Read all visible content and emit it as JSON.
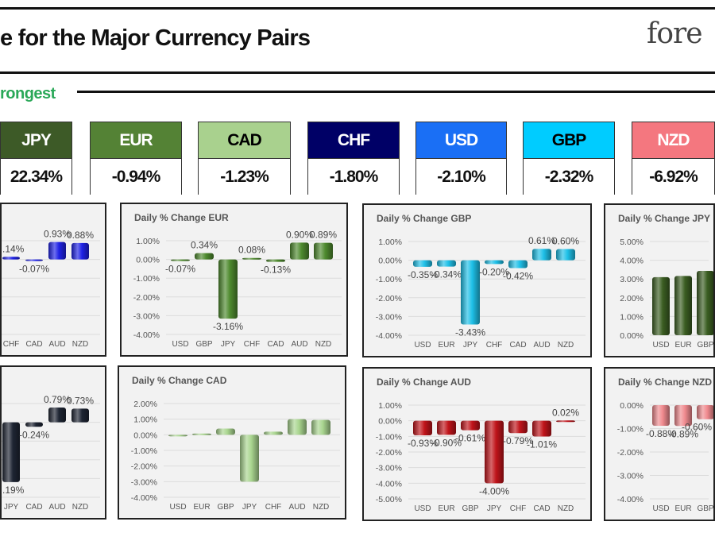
{
  "header": {
    "title": "e for the Major Currency Pairs",
    "logo": "fore",
    "section_label": "rongest"
  },
  "strength": [
    {
      "currency": "JPY",
      "value": "22.34%",
      "bg": "#3d5a27",
      "fg": "#ffffff"
    },
    {
      "currency": "EUR",
      "value": "-0.94%",
      "bg": "#548235",
      "fg": "#ffffff"
    },
    {
      "currency": "CAD",
      "value": "-1.23%",
      "bg": "#a9d18e",
      "fg": "#000000"
    },
    {
      "currency": "CHF",
      "value": "-1.80%",
      "bg": "#000066",
      "fg": "#ffffff"
    },
    {
      "currency": "USD",
      "value": "-2.10%",
      "bg": "#1a6ff5",
      "fg": "#ffffff"
    },
    {
      "currency": "GBP",
      "value": "-2.32%",
      "bg": "#00ccff",
      "fg": "#000000"
    },
    {
      "currency": "NZD",
      "value": "-6.92%",
      "bg": "#f4777f",
      "fg": "#ffffff"
    }
  ],
  "chart_data": [
    {
      "type": "bar",
      "title": "",
      "color": "#1f22e6",
      "categories": [
        "CHF",
        "CAD",
        "AUD",
        "NZD"
      ],
      "values": [
        0.14,
        -0.07,
        0.93,
        0.88
      ],
      "labels": [
        ".14%",
        "-0.07%",
        "0.93%",
        "0.88%"
      ],
      "ylim": [
        -4,
        1
      ],
      "ticks": [],
      "tick_labels": []
    },
    {
      "type": "bar",
      "title": "Daily % Change EUR",
      "color": "#4e8a2e",
      "categories": [
        "USD",
        "GBP",
        "JPY",
        "CHF",
        "CAD",
        "AUD",
        "NZD"
      ],
      "values": [
        -0.07,
        0.34,
        -3.16,
        0.08,
        -0.13,
        0.9,
        0.89
      ],
      "labels": [
        "-0.07%",
        "0.34%",
        "-3.16%",
        "0.08%",
        "-0.13%",
        "0.90%",
        "0.89%"
      ],
      "ylim": [
        -4,
        1
      ],
      "ticks": [
        1,
        0,
        -1,
        -2,
        -3,
        -4
      ],
      "tick_labels": [
        "1.00%",
        "0.00%",
        "-1.00%",
        "-2.00%",
        "-3.00%",
        "-4.00%"
      ]
    },
    {
      "type": "bar",
      "title": "Daily % Change GBP",
      "color": "#1ec0e8",
      "categories": [
        "USD",
        "EUR",
        "JPY",
        "CHF",
        "CAD",
        "AUD",
        "NZD"
      ],
      "values": [
        -0.35,
        -0.34,
        -3.43,
        -0.2,
        -0.42,
        0.61,
        0.6
      ],
      "labels": [
        "-0.35%",
        "-0.34%",
        "-3.43%",
        "-0.20%",
        "-0.42%",
        "0.61%",
        "0.60%"
      ],
      "ylim": [
        -4,
        1
      ],
      "ticks": [
        1,
        0,
        -1,
        -2,
        -3,
        -4
      ],
      "tick_labels": [
        "1.00%",
        "0.00%",
        "-1.00%",
        "-2.00%",
        "-3.00%",
        "-4.00%"
      ]
    },
    {
      "type": "bar",
      "title": "Daily % Change JPY",
      "color": "#3b5e22",
      "categories": [
        "USD",
        "EUR",
        "GBP"
      ],
      "values": [
        3.1,
        3.16,
        3.43
      ],
      "labels": [
        "",
        "",
        ""
      ],
      "ylim": [
        0,
        5
      ],
      "ticks": [
        5,
        4,
        3,
        2,
        1,
        0
      ],
      "tick_labels": [
        "5.00%",
        "4.00%",
        "3.00%",
        "2.00%",
        "1.00%",
        "0.00%"
      ]
    },
    {
      "type": "bar",
      "title": "",
      "color": "#1e2533",
      "categories": [
        "JPY",
        "CAD",
        "AUD",
        "NZD"
      ],
      "values": [
        -3.19,
        -0.24,
        0.79,
        0.73
      ],
      "labels": [
        ".19%",
        "-0.24%",
        "0.79%",
        "0.73%"
      ],
      "ylim": [
        -4,
        1
      ],
      "ticks": [],
      "tick_labels": []
    },
    {
      "type": "bar",
      "title": "Daily % Change CAD",
      "color": "#a9d58f",
      "categories": [
        "USD",
        "EUR",
        "GBP",
        "JPY",
        "CHF",
        "AUD",
        "NZD"
      ],
      "values": [
        -0.03,
        0.08,
        0.4,
        -3.0,
        0.2,
        1.0,
        0.95
      ],
      "labels": [
        "",
        "",
        "",
        "",
        "",
        "",
        ""
      ],
      "ylim": [
        -4,
        2
      ],
      "ticks": [
        2,
        1,
        0,
        -1,
        -2,
        -3,
        -4
      ],
      "tick_labels": [
        "2.00%",
        "1.00%",
        "0.00%",
        "-1.00%",
        "-2.00%",
        "-3.00%",
        "-4.00%"
      ]
    },
    {
      "type": "bar",
      "title": "Daily % Change AUD",
      "color": "#c0141a",
      "categories": [
        "USD",
        "EUR",
        "GBP",
        "JPY",
        "CHF",
        "CAD",
        "NZD"
      ],
      "values": [
        -0.93,
        -0.9,
        -0.61,
        -4.0,
        -0.79,
        -1.01,
        0.02
      ],
      "labels": [
        "-0.93%",
        "-0.90%",
        "-0.61%",
        "-4.00%",
        "-0.79%",
        "-1.01%",
        "0.02%"
      ],
      "ylim": [
        -5,
        1
      ],
      "ticks": [
        1,
        0,
        -1,
        -2,
        -3,
        -4,
        -5
      ],
      "tick_labels": [
        "1.00%",
        "0.00%",
        "-1.00%",
        "-2.00%",
        "-3.00%",
        "-4.00%",
        "-5.00%"
      ]
    },
    {
      "type": "bar",
      "title": "Daily % Change NZD",
      "color": "#f08a8f",
      "categories": [
        "USD",
        "EUR",
        "GBP"
      ],
      "values": [
        -0.88,
        -0.89,
        -0.6
      ],
      "labels": [
        "-0.88%",
        "-0.89%",
        "-0.60%"
      ],
      "ylim": [
        -4,
        0
      ],
      "ticks": [
        0,
        -1,
        -2,
        -3,
        -4
      ],
      "tick_labels": [
        "0.00%",
        "-1.00%",
        "-2.00%",
        "-3.00%",
        "-4.00%"
      ]
    }
  ]
}
